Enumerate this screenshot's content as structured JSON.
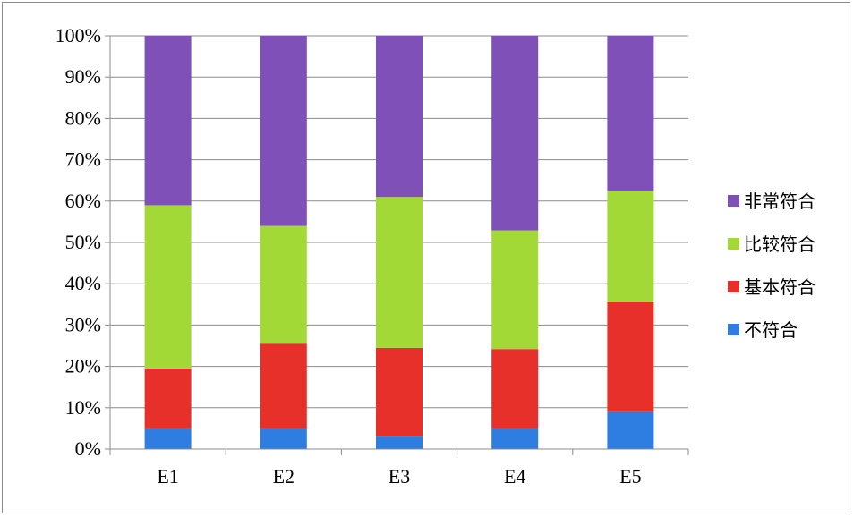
{
  "chart_data": {
    "type": "bar",
    "stacked": true,
    "percent": true,
    "categories": [
      "E1",
      "E2",
      "E3",
      "E4",
      "E5"
    ],
    "series": [
      {
        "name": "不符合",
        "color": "#2e7de0",
        "values": [
          5,
          5,
          3,
          5,
          9
        ]
      },
      {
        "name": "基本符合",
        "color": "#e8302a",
        "values": [
          14.5,
          20.5,
          21.5,
          19.2,
          26.5
        ]
      },
      {
        "name": "比较符合",
        "color": "#a2d936",
        "values": [
          39.5,
          28.5,
          36.5,
          28.7,
          27
        ]
      },
      {
        "name": "非常符合",
        "color": "#7f50b8",
        "values": [
          41,
          46,
          39,
          47.1,
          37.5
        ]
      }
    ],
    "y_ticks": [
      "0%",
      "10%",
      "20%",
      "30%",
      "40%",
      "50%",
      "60%",
      "70%",
      "80%",
      "90%",
      "100%"
    ],
    "ylim": [
      0,
      100
    ],
    "grid": true,
    "legend": {
      "position": "right",
      "entries": [
        "非常符合",
        "比较符合",
        "基本符合",
        "不符合"
      ],
      "colors": [
        "#7f50b8",
        "#a2d936",
        "#e8302a",
        "#2e7de0"
      ]
    }
  }
}
